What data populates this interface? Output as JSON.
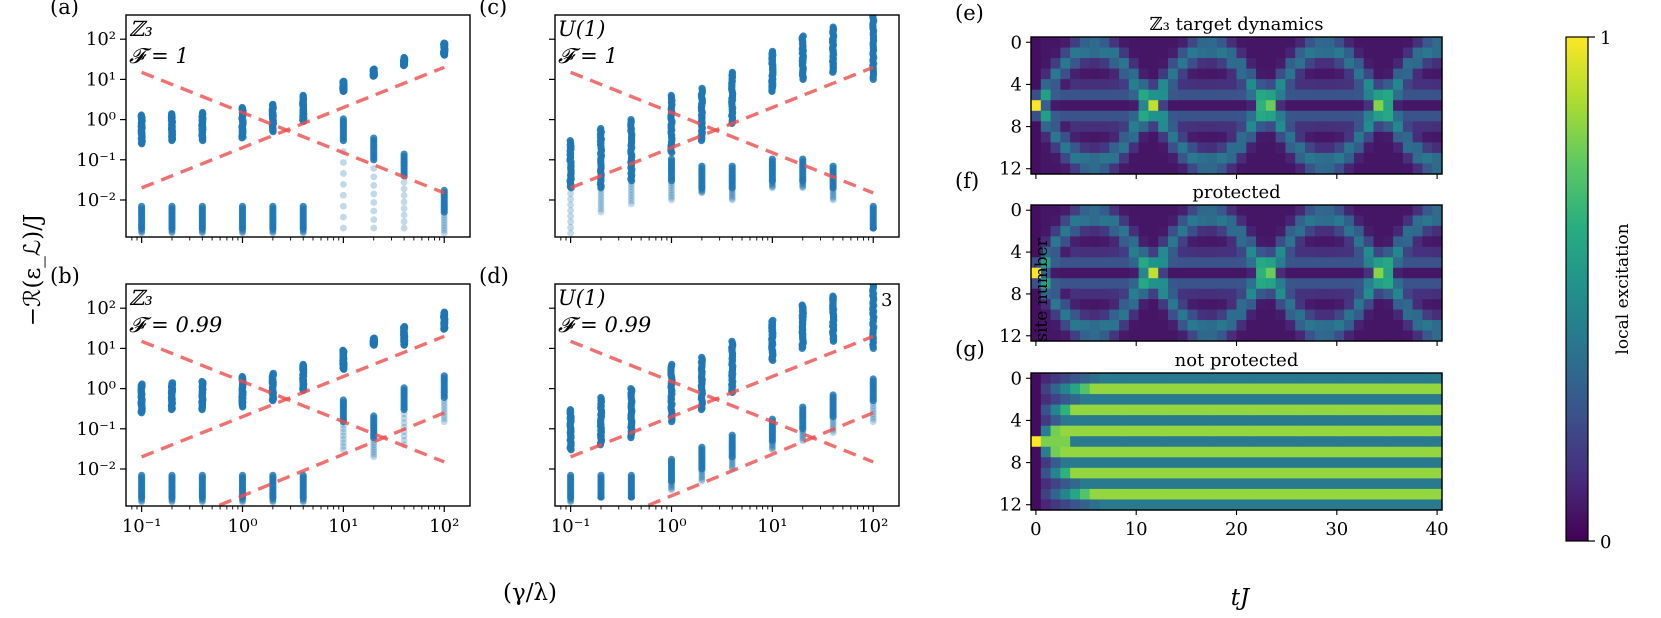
{
  "figure": {
    "shared_ylabel": "−ℛ(ε_ℒ)/J",
    "shared_xlabel": "(γ/λ)",
    "x_tick_labels": [
      "10⁻¹",
      "10⁰",
      "10¹",
      "10²"
    ],
    "y_tick_labels": [
      "10²",
      "10¹",
      "10⁰",
      "10⁻¹",
      "10⁻²"
    ],
    "heatmap_xlabel": "tJ",
    "heatmap_ylabel": "site number",
    "heatmap_x_ticks": [
      "0",
      "10",
      "20",
      "30",
      "40"
    ],
    "heatmap_y_ticks": [
      "0",
      "4",
      "8",
      "12"
    ],
    "colorbar_label": "local excitation",
    "colorbar_ticks": [
      "1",
      "0"
    ],
    "colors": {
      "points": "#1f77b4",
      "lines": "#f04c4c",
      "frame": "#000000"
    }
  },
  "chart_data": [
    {
      "id": "a",
      "letter": "(a)",
      "type": "scatter",
      "group": "ℤ₃",
      "fidelity": "𝓕 = 1",
      "xscale": "log",
      "yscale": "log",
      "xlim": [
        0.07,
        180
      ],
      "ylim": [
        0.0012,
        400
      ],
      "x": [
        0.1,
        0.2,
        0.4,
        1,
        2,
        4,
        10,
        20,
        40,
        100
      ],
      "cluster_high": [
        1.3,
        1.4,
        1.5,
        2.0,
        2.4,
        4.0,
        9.0,
        18,
        35,
        80
      ],
      "cluster_high_low": [
        0.25,
        0.3,
        0.3,
        0.35,
        0.5,
        0.9,
        5.0,
        12,
        22,
        40
      ],
      "cluster_low": [
        0.002,
        0.002,
        0.002,
        0.002,
        0.002,
        0.002,
        0.3,
        0.1,
        0.04,
        0.005
      ],
      "faint_min": [
        0.0015,
        0.0015,
        0.0015,
        0.0015,
        0.0015,
        0.0015,
        0.002,
        0.002,
        0.002,
        0.0015
      ],
      "dashed_lines": [
        {
          "name": "rising",
          "x": [
            0.1,
            100
          ],
          "y": [
            0.02,
            20
          ]
        },
        {
          "name": "falling",
          "x": [
            0.1,
            100
          ],
          "y": [
            15,
            0.015
          ]
        }
      ]
    },
    {
      "id": "b",
      "letter": "(b)",
      "type": "scatter",
      "group": "ℤ₃",
      "fidelity": "𝓕 = 0.99",
      "xscale": "log",
      "yscale": "log",
      "xlim": [
        0.07,
        180
      ],
      "ylim": [
        0.0012,
        400
      ],
      "x": [
        0.1,
        0.2,
        0.4,
        1,
        2,
        4,
        10,
        20,
        40,
        100
      ],
      "cluster_high": [
        1.3,
        1.4,
        1.5,
        2.0,
        2.4,
        4.0,
        9.0,
        18,
        35,
        80
      ],
      "cluster_high_low": [
        0.25,
        0.3,
        0.3,
        0.35,
        0.5,
        0.9,
        3.0,
        12,
        12,
        30
      ],
      "cluster_low": [
        0.002,
        0.002,
        0.002,
        0.002,
        0.002,
        0.002,
        0.15,
        0.06,
        0.3,
        0.6
      ],
      "faint_min": [
        0.0015,
        0.0015,
        0.0015,
        0.0015,
        0.0015,
        0.0015,
        0.03,
        0.02,
        0.04,
        0.15
      ],
      "dashed_lines": [
        {
          "name": "rising",
          "x": [
            0.1,
            100
          ],
          "y": [
            0.02,
            20
          ]
        },
        {
          "name": "falling",
          "x": [
            0.1,
            100
          ],
          "y": [
            15,
            0.015
          ]
        },
        {
          "name": "rising-low",
          "x": [
            0.1,
            100
          ],
          "y": [
            0.0002,
            0.25
          ]
        }
      ]
    },
    {
      "id": "c",
      "letter": "(c)",
      "type": "scatter",
      "group": "U(1)",
      "fidelity": "𝓕 = 1",
      "xscale": "log",
      "yscale": "log",
      "xlim": [
        0.07,
        180
      ],
      "ylim": [
        0.0012,
        400
      ],
      "x": [
        0.1,
        0.2,
        0.4,
        1,
        2,
        4,
        10,
        20,
        40,
        100
      ],
      "cluster_high": [
        0.3,
        0.6,
        1.0,
        4.0,
        6.0,
        15,
        50,
        120,
        200,
        400
      ],
      "cluster_high_low": [
        0.03,
        0.04,
        0.06,
        0.15,
        0.3,
        0.8,
        5.0,
        10,
        15,
        10
      ],
      "cluster_low": [
        0.02,
        0.02,
        0.03,
        0.03,
        0.02,
        0.02,
        0.03,
        0.03,
        0.02,
        0.002
      ],
      "faint_min": [
        0.0015,
        0.005,
        0.008,
        0.01,
        0.015,
        0.01,
        0.02,
        0.02,
        0.01,
        0.002
      ],
      "dashed_lines": [
        {
          "name": "rising",
          "x": [
            0.1,
            100
          ],
          "y": [
            0.02,
            20
          ]
        },
        {
          "name": "falling",
          "x": [
            0.1,
            100
          ],
          "y": [
            15,
            0.015
          ]
        }
      ]
    },
    {
      "id": "d",
      "letter": "(d)",
      "type": "scatter",
      "group": "U(1)",
      "fidelity": "𝓕 = 0.99",
      "corner_note": "3",
      "xscale": "log",
      "yscale": "log",
      "xlim": [
        0.07,
        180
      ],
      "ylim": [
        0.0012,
        400
      ],
      "x": [
        0.1,
        0.2,
        0.4,
        1,
        2,
        4,
        10,
        20,
        40,
        100
      ],
      "cluster_high": [
        0.3,
        0.6,
        1.0,
        4.0,
        6.0,
        15,
        50,
        120,
        200,
        400
      ],
      "cluster_high_low": [
        0.03,
        0.04,
        0.06,
        0.15,
        0.3,
        0.8,
        5.0,
        10,
        15,
        10
      ],
      "cluster_low": [
        0.002,
        0.002,
        0.002,
        0.005,
        0.01,
        0.02,
        0.05,
        0.1,
        0.2,
        0.5
      ],
      "faint_min": [
        0.0015,
        0.002,
        0.002,
        0.003,
        0.005,
        0.01,
        0.03,
        0.05,
        0.08,
        0.15
      ],
      "dashed_lines": [
        {
          "name": "rising",
          "x": [
            0.1,
            100
          ],
          "y": [
            0.02,
            20
          ]
        },
        {
          "name": "falling",
          "x": [
            0.1,
            100
          ],
          "y": [
            15,
            0.015
          ]
        },
        {
          "name": "rising-low",
          "x": [
            0.1,
            100
          ],
          "y": [
            0.0002,
            0.25
          ]
        }
      ]
    },
    {
      "id": "e",
      "letter": "(e)",
      "type": "heatmap",
      "title": "ℤ₃  target dynamics",
      "mode": "protected",
      "sites": 13,
      "time_max": 40,
      "time_steps": 42,
      "initial_site": 6,
      "value_range": [
        0,
        1
      ]
    },
    {
      "id": "f",
      "letter": "(f)",
      "type": "heatmap",
      "title": "protected",
      "mode": "protected",
      "sites": 13,
      "time_max": 40,
      "time_steps": 42,
      "initial_site": 6,
      "value_range": [
        0,
        1
      ]
    },
    {
      "id": "g",
      "letter": "(g)",
      "type": "heatmap",
      "title": "not protected",
      "mode": "unprotected",
      "sites": 13,
      "time_max": 40,
      "time_steps": 42,
      "initial_site": 6,
      "value_range": [
        0,
        1
      ]
    }
  ]
}
